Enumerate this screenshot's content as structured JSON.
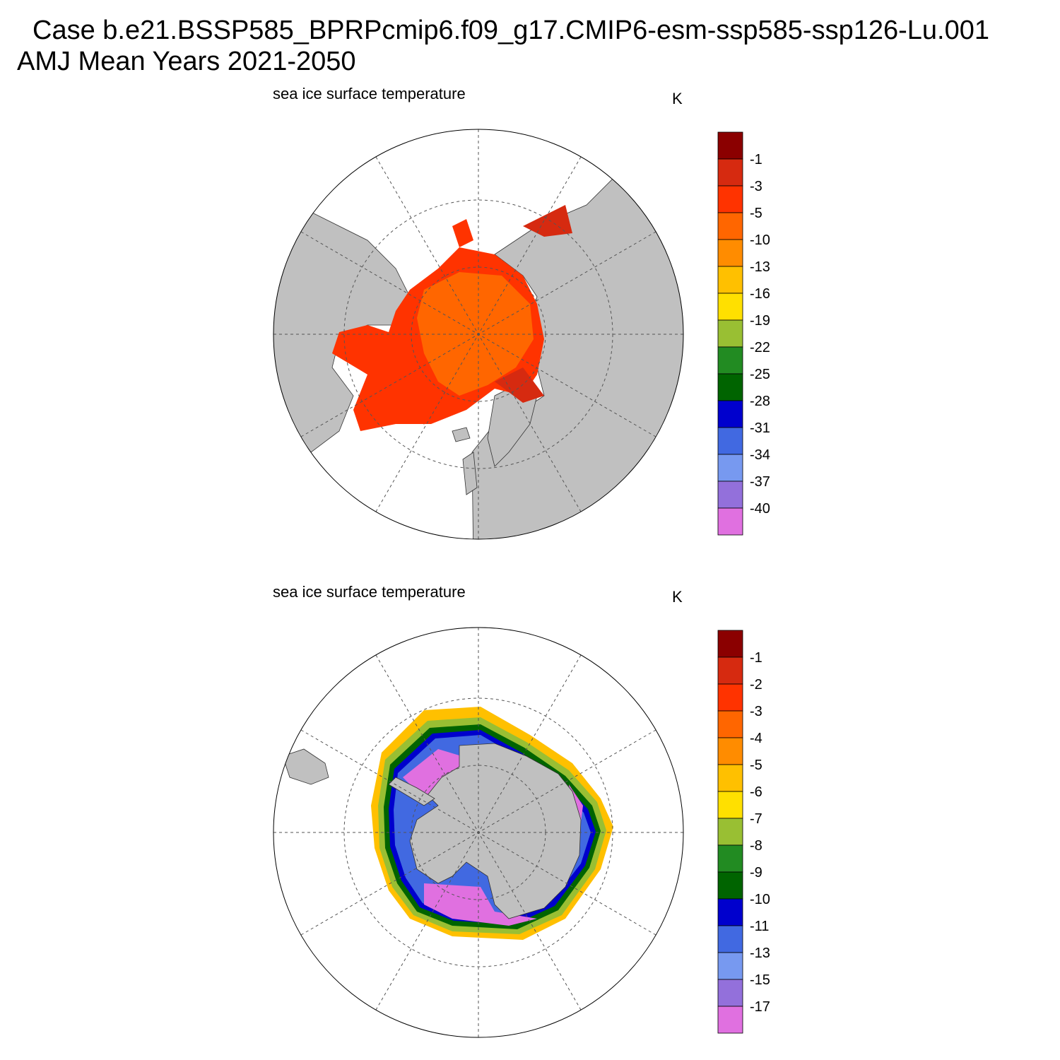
{
  "figure": {
    "title_line1": "Case b.e21.BSSP585_BPRPcmip6.f09_g17.CMIP6-esm-ssp585-ssp126-Lu.001",
    "title_line2": "AMJ Mean   Years 2021-2050"
  },
  "colors": {
    "land": "#c0c0c0",
    "ocean": "#ffffff",
    "ring_line": "#555555",
    "scale": [
      "#8b0000",
      "#d62a10",
      "#ff3300",
      "#ff6600",
      "#ff8c00",
      "#ffc000",
      "#ffe000",
      "#99bf33",
      "#228b22",
      "#006400",
      "#0000cd",
      "#4169e1",
      "#7799f0",
      "#9370db",
      "#e070e0"
    ]
  },
  "panels": [
    {
      "id": "north",
      "title": "sea ice surface temperature",
      "units": "K",
      "colorbar_labels": [
        "-1",
        "-3",
        "-5",
        "-10",
        "-13",
        "-16",
        "-19",
        "-22",
        "-25",
        "-28",
        "-31",
        "-34",
        "-37",
        "-40"
      ]
    },
    {
      "id": "south",
      "title": "sea ice surface temperature",
      "units": "K",
      "colorbar_labels": [
        "-1",
        "-2",
        "-3",
        "-4",
        "-5",
        "-6",
        "-7",
        "-8",
        "-9",
        "-10",
        "-11",
        "-13",
        "-15",
        "-17"
      ]
    }
  ]
}
